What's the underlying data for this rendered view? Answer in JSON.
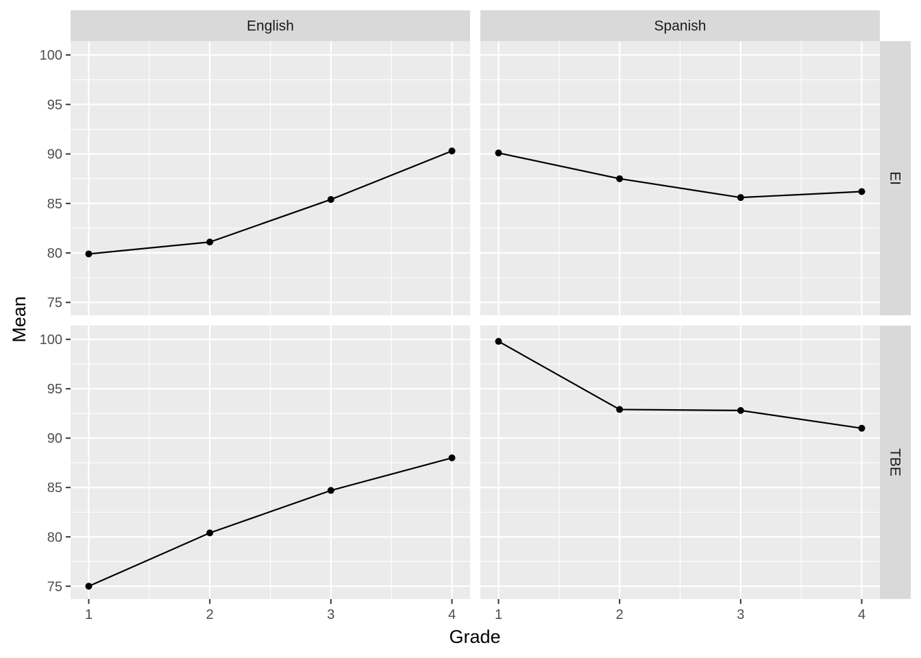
{
  "chart_data": {
    "type": "line",
    "xlabel": "Grade",
    "ylabel": "Mean",
    "x_ticks": [
      1,
      2,
      3,
      4
    ],
    "y_ticks": [
      75,
      80,
      85,
      90,
      95,
      100
    ],
    "ylim": [
      73.7,
      101.4
    ],
    "xlim": [
      0.85,
      4.15
    ],
    "grid": true,
    "col_facets": [
      "English",
      "Spanish"
    ],
    "row_facets": [
      "EI",
      "TBE"
    ],
    "colors": {
      "panel_bg": "#ebebeb",
      "strip_bg": "#d9d9d9",
      "grid": "#ffffff",
      "line": "#000000"
    },
    "panels": [
      {
        "col": "English",
        "row": "EI",
        "x": [
          1,
          2,
          3,
          4
        ],
        "y": [
          79.9,
          81.1,
          85.4,
          90.3
        ]
      },
      {
        "col": "Spanish",
        "row": "EI",
        "x": [
          1,
          2,
          3,
          4
        ],
        "y": [
          90.1,
          87.5,
          85.6,
          86.2
        ]
      },
      {
        "col": "English",
        "row": "TBE",
        "x": [
          1,
          2,
          3,
          4
        ],
        "y": [
          75.0,
          80.4,
          84.7,
          88.0
        ]
      },
      {
        "col": "Spanish",
        "row": "TBE",
        "x": [
          1,
          2,
          3,
          4
        ],
        "y": [
          99.8,
          92.9,
          92.8,
          91.0
        ]
      }
    ]
  }
}
